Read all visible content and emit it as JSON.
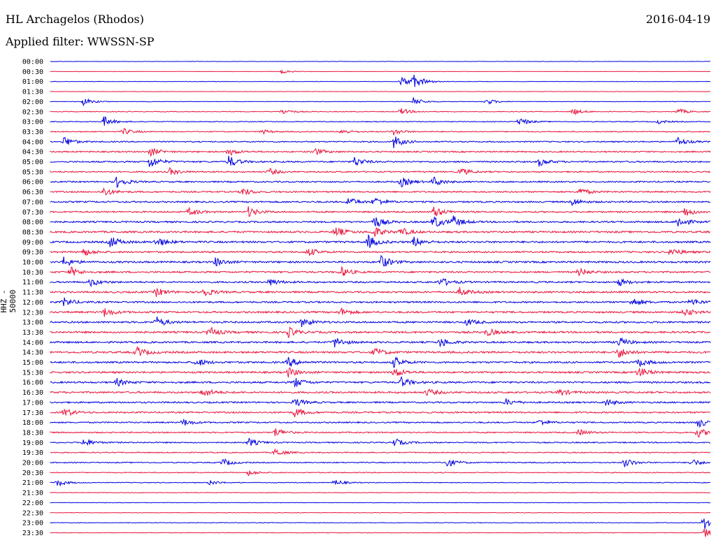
{
  "header": {
    "station": "HL Archagelos (Rhodos)",
    "date": "2016-04-19",
    "filter": "Applied filter: WWSSN-SP"
  },
  "chart_data": {
    "type": "line",
    "title": "HL Archagelos (Rhodos)",
    "ylabel": "HHZ - 50000",
    "row_colors": [
      "#0000e0",
      "#e8143c"
    ],
    "rows": [
      {
        "label": "00:00",
        "activity": 0.1,
        "events": []
      },
      {
        "label": "00:30",
        "activity": 0.12,
        "events": [
          [
            0.35,
            0.4
          ]
        ]
      },
      {
        "label": "01:00",
        "activity": 0.14,
        "events": [
          [
            0.55,
            1.6
          ],
          [
            0.53,
            1.0
          ]
        ]
      },
      {
        "label": "01:30",
        "activity": 0.12,
        "events": []
      },
      {
        "label": "02:00",
        "activity": 0.16,
        "events": [
          [
            0.05,
            0.7
          ],
          [
            0.55,
            0.8
          ],
          [
            0.66,
            0.6
          ]
        ]
      },
      {
        "label": "02:30",
        "activity": 0.22,
        "events": [
          [
            0.35,
            0.6
          ],
          [
            0.53,
            0.7
          ],
          [
            0.79,
            0.7
          ],
          [
            0.95,
            0.6
          ]
        ]
      },
      {
        "label": "03:00",
        "activity": 0.25,
        "events": [
          [
            0.08,
            1.0
          ],
          [
            0.71,
            0.8
          ],
          [
            0.92,
            0.4
          ]
        ]
      },
      {
        "label": "03:30",
        "activity": 0.3,
        "events": [
          [
            0.11,
            0.6
          ],
          [
            0.32,
            0.4
          ],
          [
            0.44,
            0.5
          ],
          [
            0.52,
            0.6
          ]
        ]
      },
      {
        "label": "04:00",
        "activity": 0.38,
        "events": [
          [
            0.02,
            1.0
          ],
          [
            0.52,
            1.2
          ],
          [
            0.95,
            0.9
          ]
        ]
      },
      {
        "label": "04:30",
        "activity": 0.42,
        "events": [
          [
            0.15,
            0.9
          ],
          [
            0.27,
            0.7
          ],
          [
            0.4,
            0.7
          ]
        ]
      },
      {
        "label": "05:00",
        "activity": 0.45,
        "events": [
          [
            0.15,
            1.2
          ],
          [
            0.27,
            1.1
          ],
          [
            0.46,
            0.9
          ],
          [
            0.74,
            0.8
          ]
        ]
      },
      {
        "label": "05:30",
        "activity": 0.42,
        "events": [
          [
            0.18,
            0.7
          ],
          [
            0.33,
            0.7
          ],
          [
            0.62,
            0.8
          ]
        ]
      },
      {
        "label": "06:00",
        "activity": 0.45,
        "events": [
          [
            0.1,
            1.1
          ],
          [
            0.53,
            1.0
          ],
          [
            0.58,
            0.9
          ]
        ]
      },
      {
        "label": "06:30",
        "activity": 0.45,
        "events": [
          [
            0.08,
            0.9
          ],
          [
            0.29,
            0.8
          ],
          [
            0.8,
            0.8
          ]
        ]
      },
      {
        "label": "07:00",
        "activity": 0.48,
        "events": [
          [
            0.45,
            0.9
          ],
          [
            0.49,
            0.9
          ],
          [
            0.79,
            0.7
          ]
        ]
      },
      {
        "label": "07:30",
        "activity": 0.48,
        "events": [
          [
            0.21,
            0.8
          ],
          [
            0.3,
            0.9
          ],
          [
            0.58,
            1.1
          ],
          [
            0.96,
            0.9
          ]
        ]
      },
      {
        "label": "08:00",
        "activity": 0.52,
        "events": [
          [
            0.49,
            1.2
          ],
          [
            0.58,
            1.3
          ],
          [
            0.61,
            1.0
          ],
          [
            0.95,
            1.1
          ]
        ]
      },
      {
        "label": "08:30",
        "activity": 0.55,
        "events": [
          [
            0.43,
            1.1
          ],
          [
            0.49,
            1.0
          ],
          [
            0.53,
            0.8
          ]
        ]
      },
      {
        "label": "09:00",
        "activity": 0.58,
        "events": [
          [
            0.09,
            1.1
          ],
          [
            0.16,
            1.0
          ],
          [
            0.48,
            1.3
          ],
          [
            0.55,
            1.0
          ]
        ]
      },
      {
        "label": "09:30",
        "activity": 0.52,
        "events": [
          [
            0.05,
            0.7
          ],
          [
            0.39,
            0.8
          ],
          [
            0.94,
            0.8
          ]
        ]
      },
      {
        "label": "10:00",
        "activity": 0.55,
        "events": [
          [
            0.02,
            0.9
          ],
          [
            0.25,
            0.8
          ],
          [
            0.5,
            1.3
          ]
        ]
      },
      {
        "label": "10:30",
        "activity": 0.52,
        "events": [
          [
            0.03,
            0.9
          ],
          [
            0.44,
            0.9
          ],
          [
            0.8,
            0.8
          ]
        ]
      },
      {
        "label": "11:00",
        "activity": 0.52,
        "events": [
          [
            0.06,
            0.8
          ],
          [
            0.33,
            0.8
          ],
          [
            0.59,
            0.9
          ],
          [
            0.86,
            0.7
          ]
        ]
      },
      {
        "label": "11:30",
        "activity": 0.55,
        "events": [
          [
            0.16,
            0.8
          ],
          [
            0.23,
            1.0
          ],
          [
            0.62,
            0.8
          ]
        ]
      },
      {
        "label": "12:00",
        "activity": 0.52,
        "events": [
          [
            0.02,
            0.8
          ],
          [
            0.88,
            0.9
          ],
          [
            0.97,
            0.7
          ]
        ]
      },
      {
        "label": "12:30",
        "activity": 0.55,
        "events": [
          [
            0.08,
            0.9
          ],
          [
            0.44,
            0.7
          ],
          [
            0.96,
            0.8
          ]
        ]
      },
      {
        "label": "13:00",
        "activity": 0.55,
        "events": [
          [
            0.16,
            1.0
          ],
          [
            0.38,
            0.9
          ],
          [
            0.63,
            0.7
          ]
        ]
      },
      {
        "label": "13:30",
        "activity": 0.58,
        "events": [
          [
            0.24,
            1.0
          ],
          [
            0.36,
            0.9
          ],
          [
            0.66,
            0.8
          ]
        ]
      },
      {
        "label": "14:00",
        "activity": 0.55,
        "events": [
          [
            0.43,
            1.0
          ],
          [
            0.59,
            0.9
          ],
          [
            0.86,
            0.9
          ]
        ]
      },
      {
        "label": "14:30",
        "activity": 0.58,
        "events": [
          [
            0.13,
            1.0
          ],
          [
            0.49,
            0.9
          ],
          [
            0.86,
            1.1
          ]
        ]
      },
      {
        "label": "15:00",
        "activity": 0.55,
        "events": [
          [
            0.22,
            0.8
          ],
          [
            0.36,
            0.9
          ],
          [
            0.52,
            1.0
          ],
          [
            0.89,
            0.9
          ]
        ]
      },
      {
        "label": "15:30",
        "activity": 0.55,
        "events": [
          [
            0.36,
            0.9
          ],
          [
            0.52,
            1.0
          ],
          [
            0.89,
            1.1
          ]
        ]
      },
      {
        "label": "16:00",
        "activity": 0.55,
        "events": [
          [
            0.1,
            0.7
          ],
          [
            0.37,
            0.9
          ],
          [
            0.53,
            1.0
          ]
        ]
      },
      {
        "label": "16:30",
        "activity": 0.55,
        "events": [
          [
            0.23,
            1.0
          ],
          [
            0.57,
            0.7
          ],
          [
            0.77,
            0.7
          ]
        ]
      },
      {
        "label": "17:00",
        "activity": 0.48,
        "events": [
          [
            0.37,
            0.8
          ],
          [
            0.69,
            0.6
          ],
          [
            0.84,
            0.7
          ]
        ]
      },
      {
        "label": "17:30",
        "activity": 0.48,
        "events": [
          [
            0.02,
            0.9
          ],
          [
            0.37,
            0.9
          ]
        ]
      },
      {
        "label": "18:00",
        "activity": 0.42,
        "events": [
          [
            0.2,
            0.7
          ],
          [
            0.74,
            0.6
          ],
          [
            0.98,
            1.0
          ]
        ]
      },
      {
        "label": "18:30",
        "activity": 0.4,
        "events": [
          [
            0.34,
            0.9
          ],
          [
            0.8,
            0.6
          ],
          [
            0.98,
            0.9
          ]
        ]
      },
      {
        "label": "19:00",
        "activity": 0.38,
        "events": [
          [
            0.05,
            0.8
          ],
          [
            0.3,
            0.8
          ],
          [
            0.52,
            0.8
          ]
        ]
      },
      {
        "label": "19:30",
        "activity": 0.32,
        "events": [
          [
            0.34,
            0.8
          ]
        ]
      },
      {
        "label": "20:00",
        "activity": 0.32,
        "events": [
          [
            0.26,
            0.8
          ],
          [
            0.6,
            0.9
          ],
          [
            0.87,
            0.9
          ],
          [
            0.97,
            0.8
          ]
        ]
      },
      {
        "label": "20:30",
        "activity": 0.28,
        "events": [
          [
            0.3,
            0.5
          ]
        ]
      },
      {
        "label": "21:00",
        "activity": 0.22,
        "events": [
          [
            0.01,
            0.7
          ],
          [
            0.24,
            0.5
          ],
          [
            0.43,
            0.6
          ]
        ]
      },
      {
        "label": "21:30",
        "activity": 0.18,
        "events": []
      },
      {
        "label": "22:00",
        "activity": 0.14,
        "events": []
      },
      {
        "label": "22:30",
        "activity": 0.18,
        "events": []
      },
      {
        "label": "23:00",
        "activity": 0.18,
        "events": [
          [
            0.99,
            1.3
          ]
        ]
      },
      {
        "label": "23:30",
        "activity": 0.18,
        "events": [
          [
            0.99,
            0.9
          ]
        ]
      }
    ]
  }
}
